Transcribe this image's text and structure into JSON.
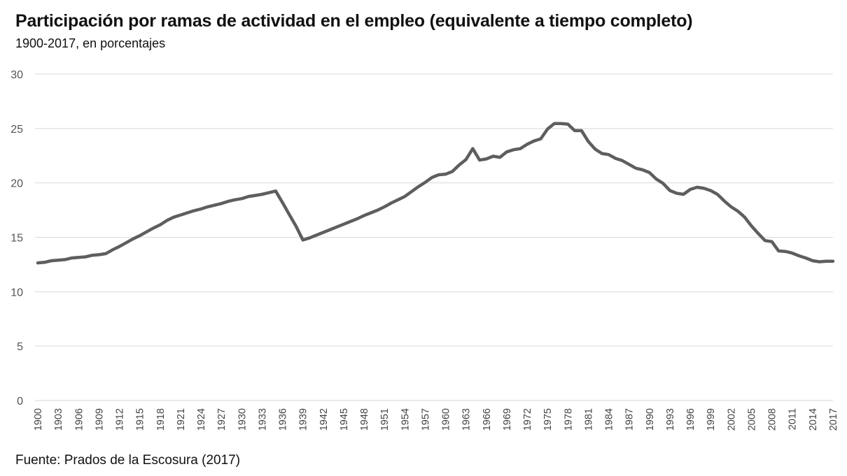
{
  "title": "Participación por ramas de actividad en el empleo (equivalente a tiempo completo)",
  "subtitle": "1900-2017, en porcentajes",
  "source": "Fuente: Prados de la Escosura (2017)",
  "chart_data": {
    "type": "line",
    "title": "Participación por ramas de actividad en el empleo (equivalente a tiempo completo)",
    "subtitle": "1900-2017, en porcentajes",
    "xlabel": "",
    "ylabel": "",
    "xlim": [
      1900,
      2017
    ],
    "ylim": [
      0,
      30
    ],
    "y_ticks": [
      0,
      5,
      10,
      15,
      20,
      25,
      30
    ],
    "x_ticks": [
      1900,
      1903,
      1906,
      1909,
      1912,
      1915,
      1918,
      1921,
      1924,
      1927,
      1930,
      1933,
      1936,
      1939,
      1942,
      1945,
      1948,
      1951,
      1954,
      1957,
      1960,
      1963,
      1966,
      1969,
      1972,
      1975,
      1978,
      1981,
      1984,
      1987,
      1990,
      1993,
      1996,
      1999,
      2002,
      2005,
      2008,
      2011,
      2014,
      2017
    ],
    "grid": "horizontal",
    "line_color": "#5e5e5e",
    "series": [
      {
        "x": [
          1900,
          1901,
          1902,
          1903,
          1904,
          1905,
          1906,
          1907,
          1908,
          1909,
          1910,
          1911,
          1912,
          1913,
          1914,
          1915,
          1916,
          1917,
          1918,
          1919,
          1920,
          1921,
          1922,
          1923,
          1924,
          1925,
          1926,
          1927,
          1928,
          1929,
          1930,
          1931,
          1932,
          1933,
          1934,
          1935,
          1936,
          1937,
          1938,
          1939,
          1940,
          1941,
          1942,
          1943,
          1944,
          1945,
          1946,
          1947,
          1948,
          1949,
          1950,
          1951,
          1952,
          1953,
          1954,
          1955,
          1956,
          1957,
          1958,
          1959,
          1960,
          1961,
          1962,
          1963,
          1964,
          1965,
          1966,
          1967,
          1968,
          1969,
          1970,
          1971,
          1972,
          1973,
          1974,
          1975,
          1976,
          1977,
          1978,
          1979,
          1980,
          1981,
          1982,
          1983,
          1984,
          1985,
          1986,
          1987,
          1988,
          1989,
          1990,
          1991,
          1992,
          1993,
          1994,
          1995,
          1996,
          1997,
          1998,
          1999,
          2000,
          2001,
          2002,
          2003,
          2004,
          2005,
          2006,
          2007,
          2008,
          2009,
          2010,
          2011,
          2012,
          2013,
          2014,
          2015,
          2016,
          2017
        ],
        "values": [
          12.65,
          12.7,
          12.85,
          12.9,
          12.95,
          13.1,
          13.15,
          13.2,
          13.35,
          13.4,
          13.5,
          13.85,
          14.15,
          14.5,
          14.85,
          15.15,
          15.5,
          15.85,
          16.15,
          16.55,
          16.85,
          17.05,
          17.25,
          17.45,
          17.6,
          17.8,
          17.95,
          18.1,
          18.3,
          18.45,
          18.55,
          18.75,
          18.85,
          18.95,
          19.1,
          19.25,
          18.2,
          17.1,
          16.0,
          14.75,
          14.95,
          15.2,
          15.45,
          15.7,
          15.95,
          16.2,
          16.45,
          16.7,
          17.0,
          17.25,
          17.5,
          17.8,
          18.15,
          18.45,
          18.75,
          19.2,
          19.65,
          20.05,
          20.5,
          20.75,
          20.8,
          21.05,
          21.65,
          22.15,
          23.15,
          22.1,
          22.2,
          22.45,
          22.35,
          22.85,
          23.05,
          23.15,
          23.55,
          23.85,
          24.05,
          24.95,
          25.45,
          25.45,
          25.4,
          24.8,
          24.8,
          23.8,
          23.1,
          22.7,
          22.6,
          22.25,
          22.05,
          21.7,
          21.35,
          21.2,
          20.95,
          20.35,
          19.95,
          19.3,
          19.05,
          18.95,
          19.4,
          19.6,
          19.5,
          19.3,
          18.95,
          18.35,
          17.8,
          17.4,
          16.85,
          16.05,
          15.35,
          14.7,
          14.6,
          13.75,
          13.7,
          13.55,
          13.3,
          13.1,
          12.85,
          12.75,
          12.8,
          12.8
        ]
      }
    ]
  }
}
